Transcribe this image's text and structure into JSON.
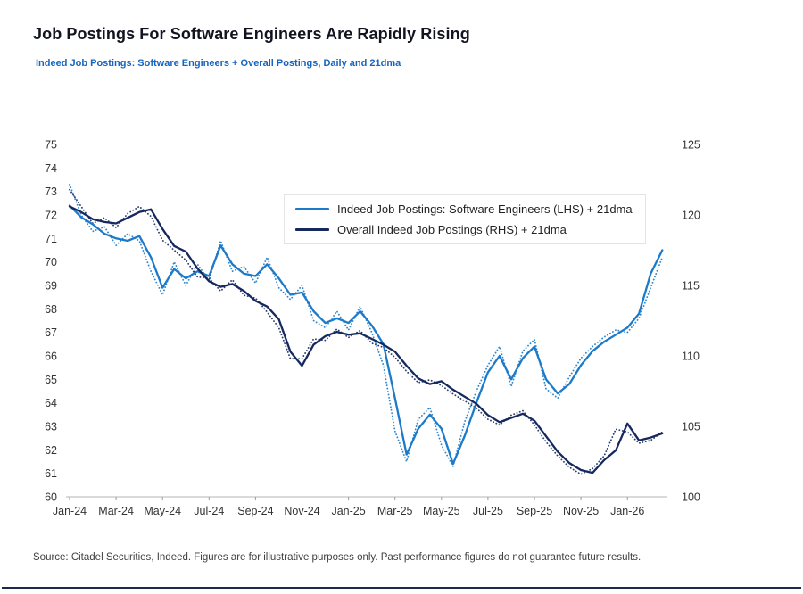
{
  "header": {
    "title": "Job Postings For Software Engineers Are Rapidly Rising",
    "subtitle": "Indeed Job Postings: Software Engineers + Overall Postings, Daily and 21dma"
  },
  "footer": {
    "source": "Source: Citadel Securities, Indeed. Figures are for illustrative purposes only. Past performance figures do not guarantee future results."
  },
  "colors": {
    "light_blue": "#1b7ac9",
    "navy": "#15295f",
    "axis_line": "#c4c4c4",
    "tick": "#9a9a9a",
    "axis_text": "#333333"
  },
  "chart_data": {
    "type": "line",
    "title": "Job Postings For Software Engineers Are Rapidly Rising",
    "subtitle": "Indeed Job Postings: Software Engineers + Overall Postings, Daily and 21dma",
    "grid": false,
    "legend_position": "upper-center-inside",
    "x_axis": {
      "tick_labels": [
        "Jan-24",
        "Mar-24",
        "May-24",
        "Jul-24",
        "Sep-24",
        "Nov-24",
        "Jan-25",
        "Mar-25",
        "May-25",
        "Jul-25",
        "Sep-25",
        "Nov-25",
        "Jan-26"
      ],
      "tick_months": [
        0,
        2,
        4,
        6,
        8,
        10,
        12,
        14,
        16,
        18,
        20,
        22,
        24
      ],
      "x_start": 0,
      "x_step": 0.5
    },
    "left_axis": {
      "ticks": [
        60,
        61,
        62,
        63,
        64,
        65,
        66,
        67,
        68,
        69,
        70,
        71,
        72,
        73,
        74,
        75
      ],
      "range": [
        60,
        75
      ]
    },
    "right_axis": {
      "ticks": [
        100,
        105,
        110,
        115,
        120,
        125
      ],
      "range": [
        100,
        125
      ]
    },
    "legend": [
      {
        "label": "Indeed Job Postings: Software Engineers (LHS) + 21dma",
        "color": "#1b7ac9"
      },
      {
        "label": "Overall Indeed Job Postings (RHS) + 21dma",
        "color": "#15295f"
      }
    ],
    "series": [
      {
        "name": "Software Engineers daily (LHS)",
        "axis": "left",
        "style": "dotted",
        "color": "#1b7ac9",
        "values": [
          73.3,
          72.0,
          71.3,
          71.5,
          70.7,
          71.2,
          70.9,
          69.6,
          68.6,
          70.0,
          69.0,
          69.9,
          69.2,
          70.9,
          69.6,
          69.8,
          69.1,
          70.2,
          68.9,
          68.4,
          69.0,
          67.5,
          67.2,
          67.9,
          67.1,
          68.1,
          67.0,
          65.6,
          62.8,
          61.5,
          63.3,
          63.8,
          62.2,
          61.3,
          63.2,
          64.5,
          65.6,
          66.4,
          64.7,
          66.2,
          66.7,
          64.6,
          64.2,
          65.1,
          65.9,
          66.4,
          66.8,
          67.1,
          67.0,
          67.6,
          68.9,
          70.2
        ]
      },
      {
        "name": "Overall daily (RHS)",
        "axis": "right",
        "style": "dotted",
        "color": "#15295f",
        "values": [
          121.8,
          120.6,
          119.4,
          119.8,
          119.1,
          120.1,
          120.6,
          119.9,
          118.2,
          117.5,
          116.8,
          115.6,
          115.5,
          114.6,
          115.4,
          114.3,
          114.1,
          113.1,
          112.0,
          109.8,
          109.8,
          111.2,
          111.1,
          111.9,
          111.3,
          111.8,
          110.9,
          110.6,
          109.9,
          108.9,
          108.1,
          108.3,
          107.9,
          107.3,
          106.8,
          106.3,
          105.5,
          105.1,
          105.8,
          106.1,
          105.1,
          103.9,
          102.9,
          102.1,
          101.6,
          102.0,
          102.9,
          104.8,
          104.6,
          103.8,
          104.0,
          104.6
        ]
      },
      {
        "name": "Indeed Job Postings: Software Engineers (LHS) + 21dma",
        "axis": "left",
        "style": "solid",
        "color": "#1b7ac9",
        "values": [
          72.4,
          71.9,
          71.6,
          71.2,
          71.0,
          70.9,
          71.1,
          70.2,
          68.9,
          69.7,
          69.3,
          69.6,
          69.4,
          70.7,
          69.9,
          69.5,
          69.4,
          69.9,
          69.3,
          68.6,
          68.7,
          67.9,
          67.4,
          67.6,
          67.4,
          67.9,
          67.3,
          66.5,
          64.2,
          61.8,
          62.9,
          63.5,
          62.9,
          61.4,
          62.6,
          64.0,
          65.3,
          66.0,
          65.0,
          65.9,
          66.4,
          65.0,
          64.4,
          64.8,
          65.6,
          66.2,
          66.6,
          66.9,
          67.2,
          67.8,
          69.5,
          70.5
        ]
      },
      {
        "name": "Overall Indeed Job Postings (RHS) + 21dma",
        "axis": "right",
        "style": "solid",
        "color": "#15295f",
        "values": [
          120.6,
          120.2,
          119.7,
          119.5,
          119.4,
          119.8,
          120.2,
          120.4,
          119.0,
          117.8,
          117.4,
          116.2,
          115.3,
          114.9,
          115.1,
          114.6,
          113.9,
          113.5,
          112.6,
          110.3,
          109.3,
          110.8,
          111.4,
          111.7,
          111.5,
          111.6,
          111.2,
          110.8,
          110.3,
          109.3,
          108.4,
          108.0,
          108.2,
          107.6,
          107.1,
          106.6,
          105.8,
          105.3,
          105.6,
          105.9,
          105.4,
          104.3,
          103.2,
          102.4,
          101.9,
          101.7,
          102.6,
          103.3,
          105.2,
          104.0,
          104.2,
          104.5
        ]
      }
    ]
  }
}
